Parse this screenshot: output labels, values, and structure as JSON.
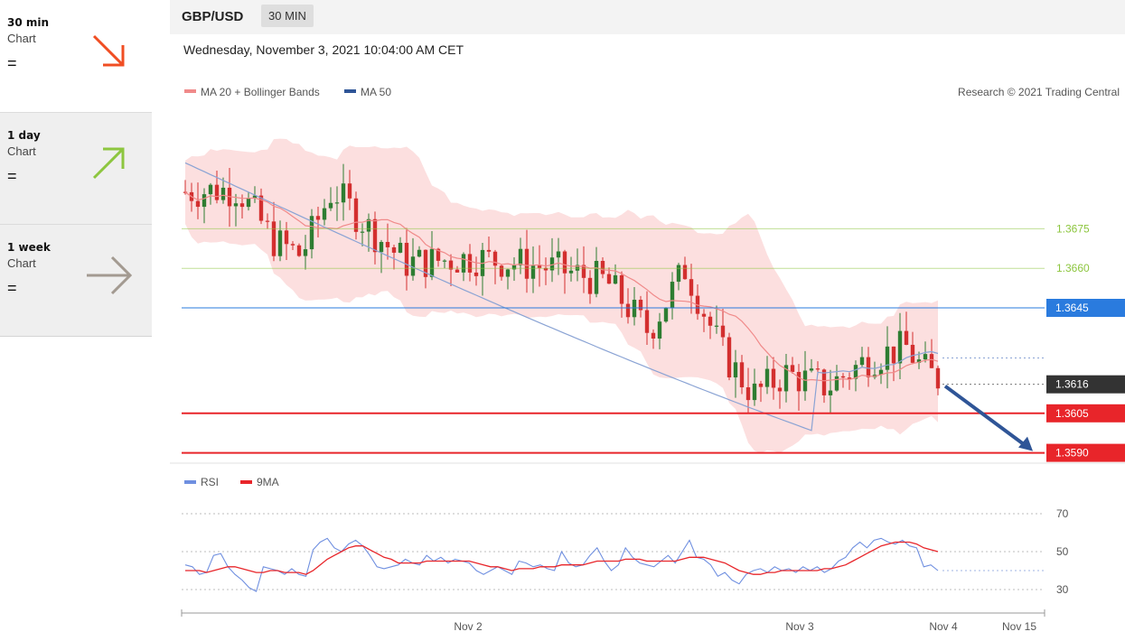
{
  "sidebar": {
    "items": [
      {
        "timeframe": "30 min",
        "label": "Chart",
        "symbol": "=",
        "arrow": "down-right-arrow-icon",
        "color": "#f04e23"
      },
      {
        "timeframe": "1 day",
        "label": "Chart",
        "symbol": "=",
        "arrow": "up-right-arrow-icon",
        "color": "#8dc63f"
      },
      {
        "timeframe": "1 week",
        "label": "Chart",
        "symbol": "=",
        "arrow": "right-arrow-icon",
        "color": "#a39a91"
      }
    ]
  },
  "header": {
    "pair": "GBP/USD",
    "timeframe": "30 MIN",
    "datetime": "Wednesday, November 3, 2021 10:04:00 AM CET"
  },
  "chart_data": {
    "type": "candlestick",
    "legend": [
      {
        "name": "MA 20 + Bollinger Bands",
        "color": "#f08a8a"
      },
      {
        "name": "MA 50",
        "color": "#2f5597"
      }
    ],
    "credit": "Research © 2021 Trading Central",
    "levels": [
      {
        "value": 1.3675,
        "label": "1.3675",
        "color": "#8dc63f",
        "style": "text"
      },
      {
        "value": 1.366,
        "label": "1.3660",
        "color": "#8dc63f",
        "style": "text"
      },
      {
        "value": 1.3645,
        "label": "1.3645",
        "color": "#2a7bde",
        "style": "box"
      },
      {
        "value": 1.3616,
        "label": "1.3616",
        "color": "#333333",
        "style": "box"
      },
      {
        "value": 1.3605,
        "label": "1.3605",
        "color": "#e8252a",
        "style": "box"
      },
      {
        "value": 1.359,
        "label": "1.3590",
        "color": "#e8252a",
        "style": "box"
      }
    ],
    "current_price": 1.3616,
    "x_ticks": [
      "Nov 2",
      "Nov 3",
      "Nov 4",
      "Nov 15"
    ],
    "target_arrow": {
      "from": 1.3616,
      "to": 1.359,
      "color": "#2f5597"
    },
    "colors": {
      "up": "#2e7d32",
      "down": "#d32f2f"
    },
    "rsi": {
      "legend": [
        {
          "name": "RSI",
          "color": "#6f8fe0"
        },
        {
          "name": "9MA",
          "color": "#e8252a"
        }
      ],
      "levels": [
        70,
        50,
        30
      ],
      "rsi_values": [
        43,
        42,
        38,
        39,
        48,
        49,
        42,
        38,
        35,
        31,
        29,
        42,
        41,
        40,
        38,
        41,
        38,
        37,
        51,
        55,
        57,
        52,
        50,
        54,
        56,
        53,
        48,
        42,
        41,
        42,
        43,
        46,
        44,
        43,
        48,
        45,
        47,
        44,
        46,
        45,
        44,
        40,
        38,
        40,
        42,
        40,
        38,
        45,
        44,
        42,
        43,
        41,
        40,
        50,
        44,
        42,
        43,
        48,
        52,
        45,
        40,
        43,
        52,
        47,
        44,
        43,
        42,
        45,
        48,
        44,
        50,
        56,
        47,
        46,
        43,
        37,
        39,
        35,
        33,
        38,
        40,
        41,
        39,
        42,
        40,
        41,
        39,
        42,
        40,
        42,
        39,
        41,
        45,
        47,
        52,
        55,
        52,
        56,
        57,
        55,
        54,
        56,
        53,
        52,
        42,
        43,
        40
      ],
      "ma_values": [
        40,
        40,
        40,
        39,
        40,
        41,
        42,
        42,
        41,
        40,
        39,
        39,
        40,
        40,
        39,
        39,
        39,
        38,
        40,
        43,
        46,
        48,
        50,
        52,
        53,
        53,
        51,
        49,
        47,
        46,
        44,
        44,
        44,
        44,
        45,
        45,
        45,
        45,
        45,
        45,
        45,
        44,
        43,
        42,
        42,
        41,
        40,
        41,
        41,
        41,
        42,
        42,
        42,
        43,
        43,
        43,
        43,
        44,
        45,
        45,
        45,
        45,
        46,
        46,
        46,
        45,
        45,
        45,
        45,
        45,
        46,
        47,
        47,
        47,
        46,
        45,
        44,
        42,
        40,
        39,
        38,
        38,
        39,
        39,
        40,
        40,
        40,
        40,
        40,
        40,
        41,
        41,
        42,
        43,
        45,
        47,
        49,
        51,
        53,
        54,
        55,
        55,
        55,
        54,
        52,
        51,
        50
      ]
    }
  }
}
